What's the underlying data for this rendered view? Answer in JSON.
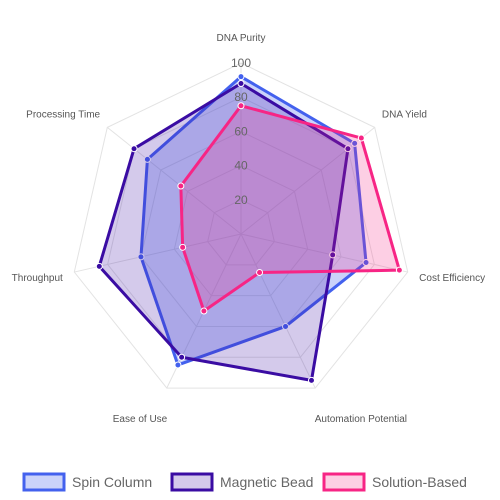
{
  "chart_data": {
    "type": "radar",
    "axes": [
      "DNA Purity",
      "DNA Yield",
      "Cost Efficiency",
      "Automation Potential",
      "Ease of Use",
      "Throughput",
      "Processing Time"
    ],
    "rlim": [
      0,
      100
    ],
    "ticks": [
      20,
      40,
      60,
      80,
      100
    ],
    "grid": true,
    "legend_position": "bottom",
    "series": [
      {
        "name": "Spin Column",
        "values": [
          92,
          85,
          75,
          60,
          85,
          60,
          70
        ],
        "color": "#4361ee",
        "fill": "rgba(67,97,238,0.28)"
      },
      {
        "name": "Magnetic Bead",
        "values": [
          88,
          80,
          55,
          95,
          80,
          85,
          80
        ],
        "color": "#3a0ca3",
        "fill": "rgba(58,12,163,0.22)"
      },
      {
        "name": "Solution-Based",
        "values": [
          75,
          90,
          95,
          25,
          50,
          35,
          45
        ],
        "color": "#f72585",
        "fill": "rgba(247,37,133,0.22)"
      }
    ]
  }
}
